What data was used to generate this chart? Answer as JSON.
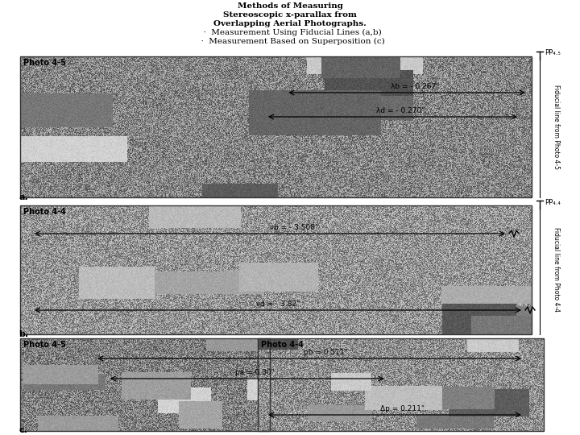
{
  "title_lines": [
    "Methods of Measuring",
    "Stereoscopic x-parallax from",
    "Overlapping Aerial Photographs.",
    "  ·  Measurement Using Fiducial Lines (a,b)",
    "  ·  Measurement Based on Superposition (c)"
  ],
  "bg_color": "#ffffff",
  "panel_a_label": "Photo 4-5",
  "panel_b_label": "Photo 4-4",
  "panel_c_label_left": "Photo 4-5",
  "panel_c_label_right": "Photo 4-4",
  "panel_a_letter": "a.",
  "panel_b_letter": "b.",
  "panel_c_letter": "c.",
  "pp_label_a": "PP₄.₅",
  "pp_label_b": "PP₄.₄",
  "fiducial_label_a": "Fiducial line from Photo 4-5",
  "fiducial_label_b": "Fiducial line from Photo 4-4",
  "measure_a_b": "λb = - 0.267\"",
  "measure_a_d": "λd = - 0.270\"",
  "measure_b_b": "νb = - 3.508\"",
  "measure_b_d": "νd = - 3.82\"",
  "measure_c_b": "pb = 0.511\"",
  "measure_c_a": "pa = 0.30\"",
  "measure_c_dp": "Δp = 0.211\""
}
